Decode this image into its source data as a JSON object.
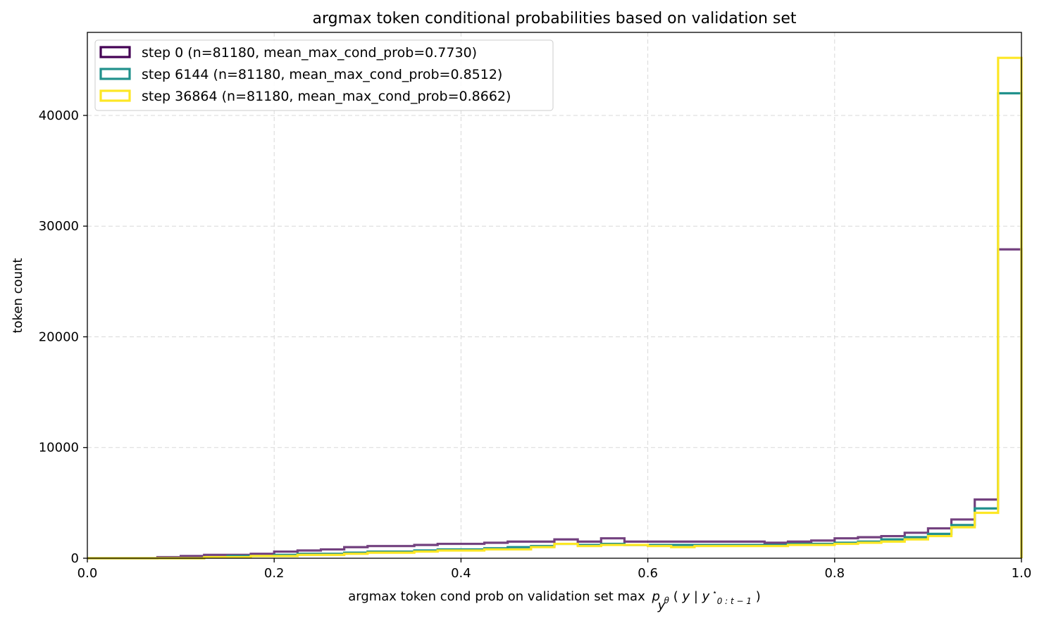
{
  "chart_data": {
    "type": "histogram",
    "title": "argmax token conditional probabilities based on validation set",
    "xlabel": "argmax token cond prob on validation set max_y p_θ(y | y*_{0:t−1})",
    "ylabel": "token count",
    "xlim": [
      0.0,
      1.0
    ],
    "ylim": [
      0,
      47500
    ],
    "xticks": [
      "0.0",
      "0.2",
      "0.4",
      "0.6",
      "0.8",
      "1.0"
    ],
    "yticks": [
      "0",
      "10000",
      "20000",
      "30000",
      "40000"
    ],
    "grid": true,
    "legend_position": "upper-left",
    "bin_edges": [
      0.0,
      0.025,
      0.05,
      0.075,
      0.1,
      0.125,
      0.15,
      0.175,
      0.2,
      0.225,
      0.25,
      0.275,
      0.3,
      0.325,
      0.35,
      0.375,
      0.4,
      0.425,
      0.45,
      0.475,
      0.5,
      0.525,
      0.55,
      0.575,
      0.6,
      0.625,
      0.65,
      0.675,
      0.7,
      0.725,
      0.75,
      0.775,
      0.8,
      0.825,
      0.85,
      0.875,
      0.9,
      0.925,
      0.95,
      0.975,
      1.0
    ],
    "series": [
      {
        "name": "step 0 (n=81180, mean_max_cond_prob=0.7730)",
        "color": "#440154",
        "values": [
          0,
          0,
          0,
          100,
          200,
          300,
          300,
          400,
          600,
          700,
          800,
          1000,
          1100,
          1100,
          1200,
          1300,
          1300,
          1400,
          1500,
          1500,
          1700,
          1500,
          1800,
          1500,
          1500,
          1500,
          1500,
          1500,
          1500,
          1400,
          1500,
          1600,
          1800,
          1900,
          2000,
          2300,
          2700,
          3500,
          5300,
          27900
        ]
      },
      {
        "name": "step 6144 (n=81180, mean_max_cond_prob=0.8512)",
        "color": "#21918c",
        "values": [
          0,
          0,
          0,
          0,
          0,
          100,
          200,
          200,
          300,
          400,
          400,
          500,
          600,
          600,
          700,
          800,
          800,
          900,
          1000,
          1100,
          1300,
          1200,
          1300,
          1200,
          1200,
          1200,
          1200,
          1200,
          1200,
          1200,
          1300,
          1300,
          1400,
          1500,
          1700,
          1900,
          2200,
          3000,
          4500,
          42000
        ]
      },
      {
        "name": "step 36864 (n=81180, mean_max_cond_prob=0.8662)",
        "color": "#fde725",
        "values": [
          0,
          0,
          0,
          0,
          0,
          100,
          100,
          200,
          200,
          300,
          300,
          400,
          500,
          500,
          600,
          700,
          700,
          800,
          800,
          1000,
          1300,
          1100,
          1200,
          1200,
          1100,
          1000,
          1100,
          1100,
          1100,
          1100,
          1200,
          1200,
          1300,
          1400,
          1500,
          1700,
          2000,
          2800,
          4100,
          45200
        ]
      }
    ]
  }
}
